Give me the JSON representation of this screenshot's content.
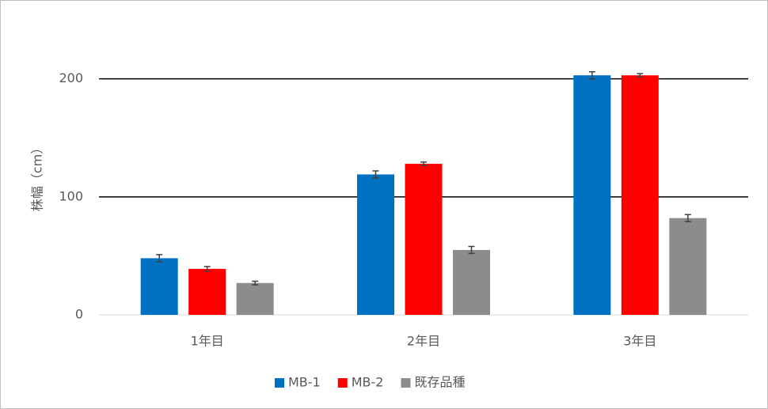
{
  "chart_data": {
    "type": "bar",
    "y_label": "株幅（cm）",
    "categories": [
      "1年目",
      "2年目",
      "3年目"
    ],
    "series": [
      {
        "name": "MB-1",
        "color": "#0070c0",
        "values": [
          48,
          119,
          203
        ],
        "errors": [
          3,
          3,
          3
        ]
      },
      {
        "name": "MB-2",
        "color": "#ff0000",
        "values": [
          39,
          128,
          203
        ],
        "errors": [
          2,
          1.5,
          1.5
        ]
      },
      {
        "name": "既存品種",
        "color": "#8c8c8c",
        "values": [
          27,
          55,
          82
        ],
        "errors": [
          1.5,
          3,
          3
        ]
      }
    ],
    "ylim": [
      0,
      240
    ],
    "yticks": [
      0,
      100,
      200
    ],
    "grid": true,
    "legend": "bottom"
  }
}
